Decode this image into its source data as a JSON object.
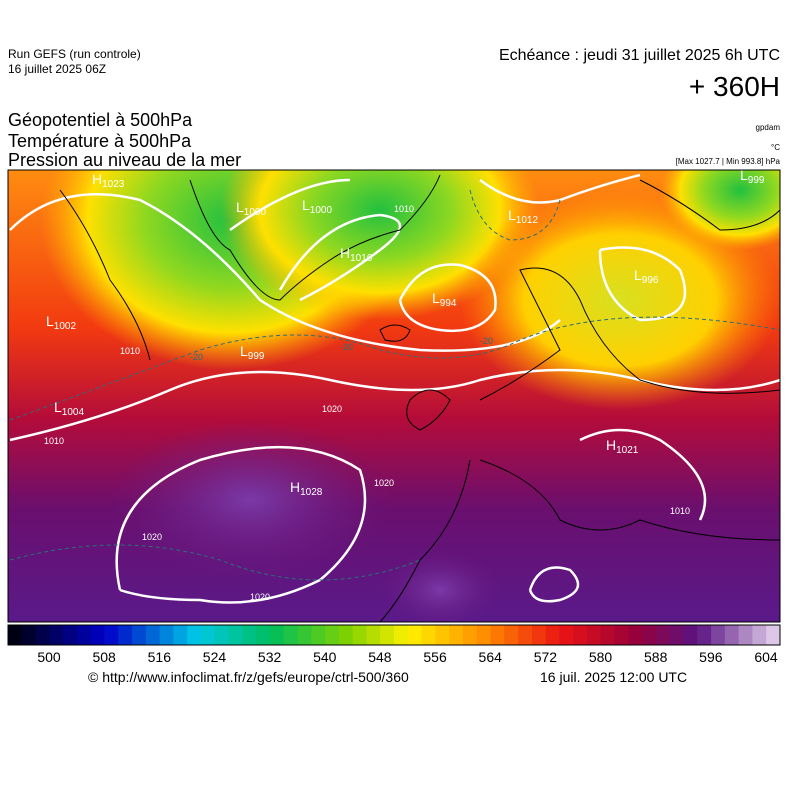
{
  "header": {
    "run": "Run GEFS (run controle)",
    "date": "16 juillet 2025 06Z",
    "forecast": "Echéance : jeudi 31 juillet 2025 6h UTC",
    "lead": "+ 360H"
  },
  "titles": [
    "Géopotentiel à 500hPa",
    "Température à 500hPa",
    "Pression au niveau de la mer"
  ],
  "units": {
    "geopotential": "gpdam",
    "temperature": "°C",
    "pressure": "[Max 1027.7 | Min 993.8] hPa"
  },
  "centers": [
    {
      "kind": "H",
      "value": "1023"
    },
    {
      "kind": "L",
      "value": "1000"
    },
    {
      "kind": "L",
      "value": "1000"
    },
    {
      "kind": "H",
      "value": "1016"
    },
    {
      "kind": "L",
      "value": "994"
    },
    {
      "kind": "L",
      "value": "1012"
    },
    {
      "kind": "L",
      "value": "996"
    },
    {
      "kind": "L",
      "value": "999"
    },
    {
      "kind": "L",
      "value": "1002"
    },
    {
      "kind": "L",
      "value": "999"
    },
    {
      "kind": "L",
      "value": "1004"
    },
    {
      "kind": "H",
      "value": "1028"
    },
    {
      "kind": "H",
      "value": "1021"
    }
  ],
  "contour_labels": [
    "1010",
    "1010",
    "1020",
    "1020",
    "1020",
    "1020",
    "1010",
    "1010",
    "-20",
    "-20",
    "-20"
  ],
  "colorbar": {
    "labels": [
      500,
      508,
      516,
      524,
      532,
      540,
      548,
      556,
      564,
      572,
      580,
      588,
      596,
      604
    ]
  },
  "footer": {
    "url": "© http://www.infoclimat.fr/z/gefs/europe/ctrl-500/360",
    "issued": "16 juil. 2025 12:00 UTC"
  }
}
